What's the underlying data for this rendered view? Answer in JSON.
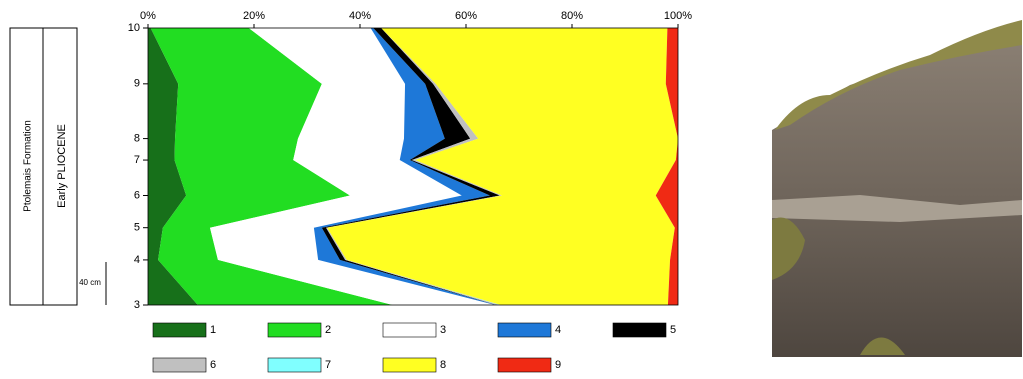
{
  "chart_data": {
    "type": "stacked-area",
    "orientation": "horizontal",
    "stratigraphy": [
      "Ptolemais Formation",
      "Early PLIOCENE"
    ],
    "scale_label": "40 cm",
    "x": [
      0,
      42,
      72,
      102,
      135,
      155,
      206,
      258
    ],
    "xlim": [
      0,
      258
    ],
    "xticks": [
      {
        "value": 0,
        "label": "3"
      },
      {
        "value": 42,
        "label": "4"
      },
      {
        "value": 72,
        "label": "5"
      },
      {
        "value": 102,
        "label": "6"
      },
      {
        "value": 135,
        "label": "7"
      },
      {
        "value": 155,
        "label": "8"
      },
      {
        "value": 206,
        "label": "9"
      },
      {
        "value": 258,
        "label": "10"
      }
    ],
    "ylim": [
      0,
      100
    ],
    "yticks": [
      {
        "value": 0,
        "label": "0%"
      },
      {
        "value": 20,
        "label": "20%"
      },
      {
        "value": 40,
        "label": "40%"
      },
      {
        "value": 60,
        "label": "60%"
      },
      {
        "value": 80,
        "label": "80%"
      },
      {
        "value": 100,
        "label": "100%"
      }
    ],
    "series": [
      {
        "name": "1",
        "color": "#17701a",
        "values": [
          9.4,
          1.9,
          2.8,
          7.2,
          5,
          5.1,
          5.7,
          0.5
        ]
      },
      {
        "name": "2",
        "color": "#22dd22",
        "values": [
          36.8,
          11.3,
          8.9,
          30.9,
          22.4,
          23.2,
          27.1,
          18.5
        ]
      },
      {
        "name": "3",
        "color": "#ffffff",
        "values": [
          19.3,
          18.9,
          19.6,
          21.1,
          20.1,
          20,
          15.7,
          23
        ]
      },
      {
        "name": "4",
        "color": "#1e78d8",
        "values": [
          0.2,
          4.1,
          1.5,
          5.3,
          1.9,
          7.7,
          3.8,
          0.5
        ]
      },
      {
        "name": "5",
        "color": "#000000",
        "values": [
          0.1,
          1,
          0.8,
          1.9,
          0.4,
          4.8,
          1.5,
          1.5
        ]
      },
      {
        "name": "6",
        "color": "#c0c0c0",
        "values": [
          0.6,
          0.3,
          0.2,
          0.4,
          0.6,
          1.5,
          0.5,
          0
        ]
      },
      {
        "name": "7",
        "color": "#80ffff",
        "values": [
          0.2,
          0,
          0,
          0,
          0,
          0,
          0,
          0
        ]
      },
      {
        "name": "8",
        "color": "#ffff22",
        "values": [
          31.5,
          61,
          65.6,
          29,
          49.2,
          37.7,
          43.4,
          54
        ]
      },
      {
        "name": "9",
        "color": "#f02a14",
        "values": [
          1.9,
          1.5,
          0.6,
          4.2,
          0.4,
          0,
          2.3,
          2
        ]
      }
    ]
  }
}
